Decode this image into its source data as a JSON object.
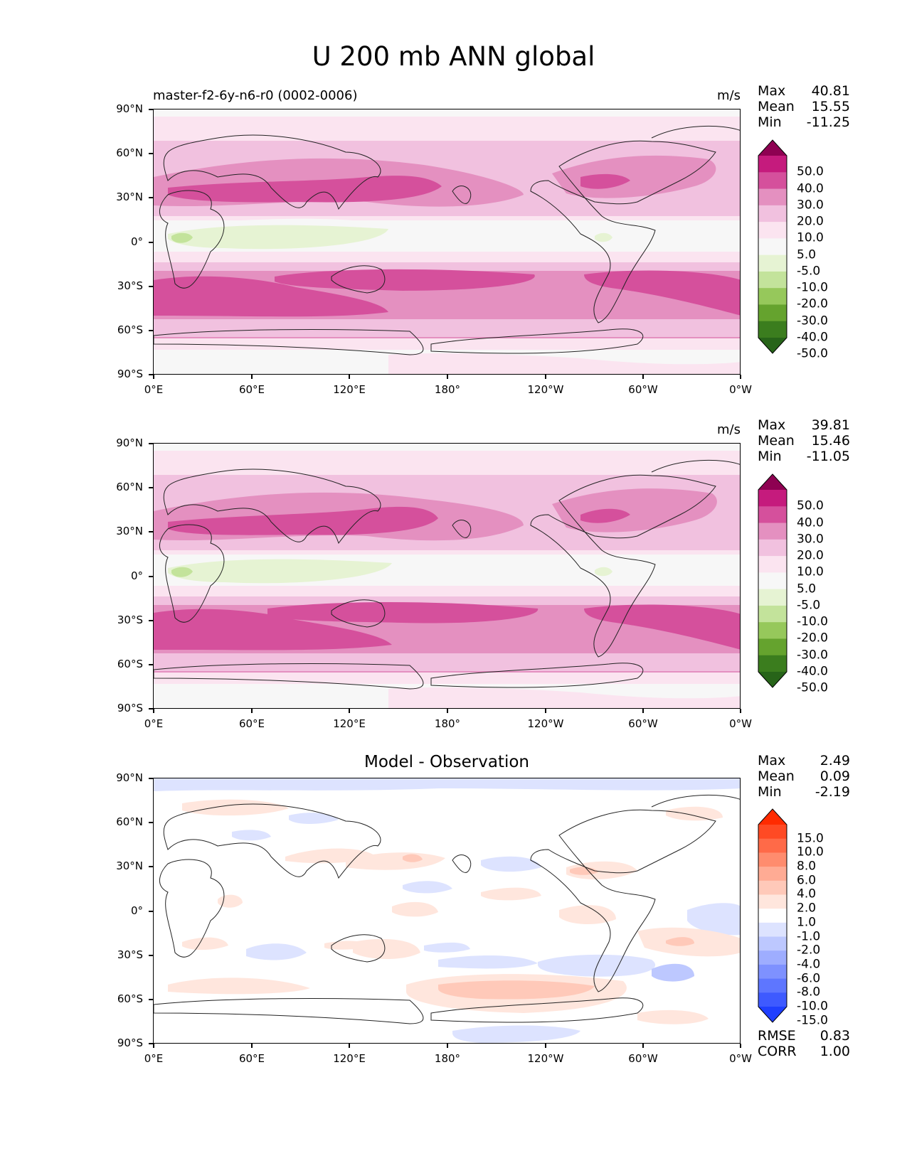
{
  "title": "U 200 mb ANN global",
  "x_ticks": [
    "0°E",
    "60°E",
    "120°E",
    "180°",
    "120°W",
    "60°W",
    "0°W"
  ],
  "y_ticks": [
    "90°N",
    "60°N",
    "30°N",
    "0°",
    "30°S",
    "60°S",
    "90°S"
  ],
  "panels": [
    {
      "title_left": "master-f2-6y-n6-r0 (0002-0006)",
      "title_center": "",
      "units": "m/s",
      "stats": {
        "max_label": "Max",
        "max": "40.81",
        "mean_label": "Mean",
        "mean": "15.55",
        "min_label": "Min",
        "min": "-11.25"
      },
      "colorbar": {
        "labels": [
          "50.0",
          "40.0",
          "30.0",
          "20.0",
          "10.0",
          "5.0",
          "-5.0",
          "-10.0",
          "-20.0",
          "-30.0",
          "-40.0",
          "-50.0"
        ],
        "colors": [
          "#8e0152",
          "#c51b7d",
          "#d5509c",
          "#e490c0",
          "#f1c1df",
          "#fbe4f0",
          "#f7f7f7",
          "#e6f3d3",
          "#c3e39b",
          "#96c85b",
          "#65a32e",
          "#3b7d1e",
          "#276419"
        ]
      }
    },
    {
      "title_left": "",
      "title_center": "",
      "units": "m/s",
      "stats": {
        "max_label": "Max",
        "max": "39.81",
        "mean_label": "Mean",
        "mean": "15.46",
        "min_label": "Min",
        "min": "-11.05"
      },
      "colorbar": {
        "labels": [
          "50.0",
          "40.0",
          "30.0",
          "20.0",
          "10.0",
          "5.0",
          "-5.0",
          "-10.0",
          "-20.0",
          "-30.0",
          "-40.0",
          "-50.0"
        ],
        "colors": [
          "#8e0152",
          "#c51b7d",
          "#d5509c",
          "#e490c0",
          "#f1c1df",
          "#fbe4f0",
          "#f7f7f7",
          "#e6f3d3",
          "#c3e39b",
          "#96c85b",
          "#65a32e",
          "#3b7d1e",
          "#276419"
        ]
      }
    },
    {
      "title_left": "",
      "title_center": "Model - Observation",
      "units": "",
      "stats": {
        "max_label": "Max",
        "max": "2.49",
        "mean_label": "Mean",
        "mean": "0.09",
        "min_label": "Min",
        "min": "-2.19"
      },
      "colorbar": {
        "labels": [
          "15.0",
          "10.0",
          "8.0",
          "6.0",
          "4.0",
          "2.0",
          "1.0",
          "-1.0",
          "-2.0",
          "-4.0",
          "-6.0",
          "-8.0",
          "-10.0",
          "-15.0"
        ],
        "colors": [
          "#ff2b00",
          "#ff4a24",
          "#ff6a48",
          "#ff8c6e",
          "#ffab94",
          "#ffc9b9",
          "#ffe6dd",
          "#ffffff",
          "#dde3ff",
          "#bdc8ff",
          "#9eadff",
          "#7e91ff",
          "#5e76ff",
          "#3e5aff",
          "#1f3fff"
        ]
      },
      "metrics": {
        "rmse_label": "RMSE",
        "rmse": "0.83",
        "corr_label": "CORR",
        "corr": "1.00"
      }
    }
  ]
}
